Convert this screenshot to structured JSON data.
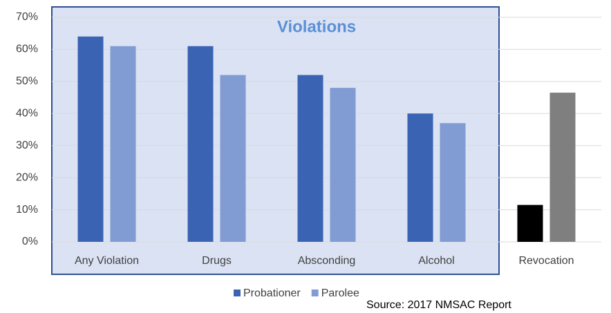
{
  "chart_data": {
    "type": "bar",
    "annotation": "Violations",
    "source": "Source: 2017 NMSAC Report",
    "categories": [
      "Any Violation",
      "Drugs",
      "Absconding",
      "Alcohol",
      "Revocation"
    ],
    "series": [
      {
        "name": "Probationer",
        "color": "#3a63b4",
        "colors": [
          "#3a63b4",
          "#3a63b4",
          "#3a63b4",
          "#3a63b4",
          "#000000"
        ],
        "values": [
          64,
          61,
          52,
          40,
          11.5
        ]
      },
      {
        "name": "Parolee",
        "color": "#819bd3",
        "colors": [
          "#819bd3",
          "#819bd3",
          "#819bd3",
          "#819bd3",
          "#7f7f7f"
        ],
        "values": [
          61,
          52,
          48,
          37,
          46.5
        ]
      }
    ],
    "ylim": [
      0,
      70
    ],
    "yticks": [
      {
        "value": 0,
        "label": "0%"
      },
      {
        "value": 10,
        "label": "10%"
      },
      {
        "value": 20,
        "label": "20%"
      },
      {
        "value": 30,
        "label": "30%"
      },
      {
        "value": 40,
        "label": "40%"
      },
      {
        "value": 50,
        "label": "50%"
      },
      {
        "value": 60,
        "label": "60%"
      },
      {
        "value": 70,
        "label": "70%"
      }
    ],
    "grid": true,
    "legend": "bottom"
  }
}
